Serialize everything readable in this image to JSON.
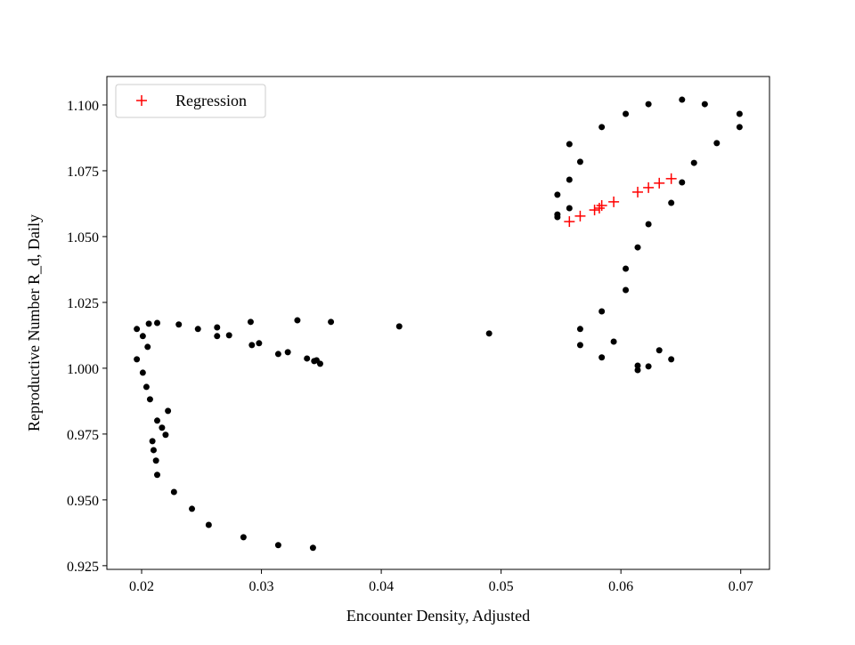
{
  "chart_data": {
    "type": "scatter",
    "title": "",
    "xlabel": "Encounter Density, Adjusted",
    "ylabel": "Reproductive Number R_d, Daily",
    "xlim": [
      0.0171,
      0.0724
    ],
    "ylim": [
      0.9236,
      1.1108
    ],
    "xticks": [
      0.02,
      0.03,
      0.04,
      0.05,
      0.06,
      0.07
    ],
    "xtick_labels": [
      "0.02",
      "0.03",
      "0.04",
      "0.05",
      "0.06",
      "0.07"
    ],
    "yticks": [
      0.925,
      0.95,
      0.975,
      1.0,
      1.025,
      1.05,
      1.075,
      1.1
    ],
    "ytick_labels": [
      "0.925",
      "0.950",
      "0.975",
      "1.000",
      "1.025",
      "1.050",
      "1.075",
      "1.100"
    ],
    "grid": false,
    "legend_position": "top-left",
    "series": [
      {
        "marker": "dot",
        "color": "#000000",
        "points": [
          [
            0.0196,
            1.0149
          ],
          [
            0.0201,
            1.0122
          ],
          [
            0.0206,
            1.0169
          ],
          [
            0.0213,
            1.0172
          ],
          [
            0.0205,
            1.0081
          ],
          [
            0.0196,
            1.0034
          ],
          [
            0.0201,
            0.9983
          ],
          [
            0.0204,
            0.9929
          ],
          [
            0.0207,
            0.9882
          ],
          [
            0.0222,
            0.9838
          ],
          [
            0.0213,
            0.9801
          ],
          [
            0.0217,
            0.9774
          ],
          [
            0.022,
            0.9747
          ],
          [
            0.0209,
            0.9723
          ],
          [
            0.021,
            0.9689
          ],
          [
            0.0212,
            0.9649
          ],
          [
            0.0213,
            0.9595
          ],
          [
            0.0227,
            0.953
          ],
          [
            0.0242,
            0.9466
          ],
          [
            0.0256,
            0.9405
          ],
          [
            0.0285,
            0.9358
          ],
          [
            0.0314,
            0.9328
          ],
          [
            0.0343,
            0.9318
          ],
          [
            0.0231,
            1.0166
          ],
          [
            0.0247,
            1.0149
          ],
          [
            0.0263,
            1.0155
          ],
          [
            0.0263,
            1.0122
          ],
          [
            0.0273,
            1.0125
          ],
          [
            0.0291,
            1.0176
          ],
          [
            0.0292,
            1.0088
          ],
          [
            0.0298,
            1.0095
          ],
          [
            0.0314,
            1.0054
          ],
          [
            0.0322,
            1.0061
          ],
          [
            0.033,
            1.0182
          ],
          [
            0.0338,
            1.0037
          ],
          [
            0.0344,
            1.0027
          ],
          [
            0.0346,
            1.003
          ],
          [
            0.0349,
            1.0017
          ],
          [
            0.0358,
            1.0176
          ],
          [
            0.0415,
            1.0159
          ],
          [
            0.049,
            1.0132
          ],
          [
            0.0547,
            1.0659
          ],
          [
            0.0547,
            1.0584
          ],
          [
            0.0547,
            1.0574
          ],
          [
            0.0557,
            1.0851
          ],
          [
            0.0557,
            1.0716
          ],
          [
            0.0557,
            1.0608
          ],
          [
            0.0566,
            1.0784
          ],
          [
            0.0566,
            1.0149
          ],
          [
            0.0566,
            1.0088
          ],
          [
            0.0584,
            1.0916
          ],
          [
            0.0584,
            1.0216
          ],
          [
            0.0584,
            1.0041
          ],
          [
            0.0594,
            1.0101
          ],
          [
            0.0604,
            1.0966
          ],
          [
            0.0604,
            1.0378
          ],
          [
            0.0604,
            1.0297
          ],
          [
            0.0614,
            1.0459
          ],
          [
            0.0614,
            1.001
          ],
          [
            0.0614,
            0.9993
          ],
          [
            0.0623,
            1.1003
          ],
          [
            0.0623,
            1.0547
          ],
          [
            0.0623,
            1.0007
          ],
          [
            0.0632,
            1.0068
          ],
          [
            0.0642,
            1.0628
          ],
          [
            0.0642,
            1.0034
          ],
          [
            0.0651,
            1.102
          ],
          [
            0.0651,
            1.0706
          ],
          [
            0.0661,
            1.078
          ],
          [
            0.067,
            1.1003
          ],
          [
            0.068,
            1.0855
          ],
          [
            0.0699,
            1.0966
          ],
          [
            0.0699,
            1.0916
          ]
        ]
      },
      {
        "name": "Regression",
        "marker": "plus",
        "color": "#ff0000",
        "points": [
          [
            0.0557,
            1.0557
          ],
          [
            0.0566,
            1.0578
          ],
          [
            0.0578,
            1.0601
          ],
          [
            0.0582,
            1.0608
          ],
          [
            0.0584,
            1.0618
          ],
          [
            0.0594,
            1.0632
          ],
          [
            0.0614,
            1.0669
          ],
          [
            0.0623,
            1.0686
          ],
          [
            0.0632,
            1.0703
          ],
          [
            0.0642,
            1.072
          ]
        ]
      }
    ]
  }
}
